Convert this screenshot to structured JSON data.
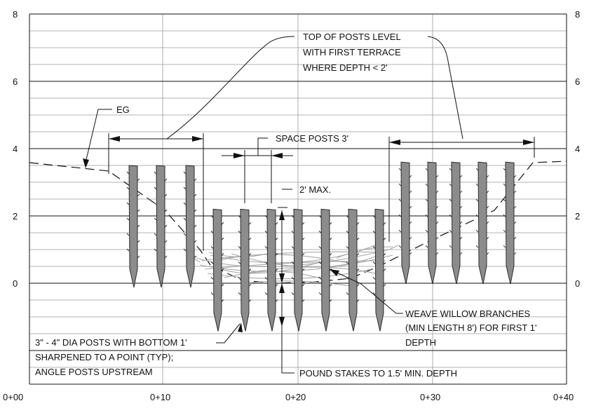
{
  "section": {
    "y_ticks": [
      "8",
      "6",
      "4",
      "2",
      "0"
    ],
    "x_ticks": [
      "0+00",
      "0+10",
      "0+20",
      "0+30",
      "0+40"
    ],
    "post_top_elevations": [
      3.5,
      3.5,
      3.5,
      2.2,
      2.2,
      2.2,
      2.2,
      2.2,
      2.2,
      2.2,
      3.6,
      3.6,
      3.6,
      3.6,
      3.6
    ]
  },
  "callouts": {
    "top_of_posts": [
      "TOP OF POSTS LEVEL",
      "WITH FIRST TERRACE",
      "WHERE DEPTH < 2'"
    ],
    "eg": "EG",
    "space_posts": "SPACE POSTS 3'",
    "max_depth": "2' MAX.",
    "weave": [
      "WEAVE WILLOW BRANCHES",
      "(MIN LENGTH 8') FOR FIRST 1'",
      "DEPTH"
    ],
    "posts_note": [
      "3\" - 4\" DIA POSTS WITH BOTTOM 1'",
      "SHARPENED TO A POINT (TYP);",
      "ANGLE POSTS UPSTREAM"
    ],
    "pound_stakes": "POUND STAKES TO 1.5' MIN. DEPTH"
  }
}
